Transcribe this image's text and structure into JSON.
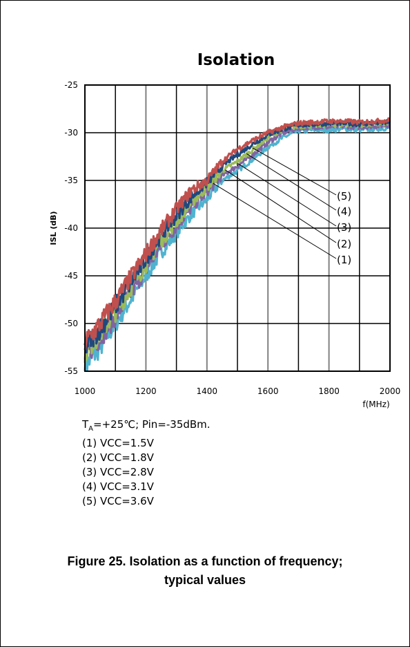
{
  "chart_data": {
    "type": "line",
    "title": "Isolation",
    "ylabel": "ISL (dB)",
    "xlabel": "f(MHz)",
    "xlim": [
      1000,
      2000
    ],
    "ylim": [
      -55,
      -25
    ],
    "xticks": [
      1000,
      1200,
      1400,
      1600,
      1800,
      2000
    ],
    "yticks": [
      -25,
      -30,
      -35,
      -40,
      -45,
      -50,
      -55
    ],
    "grid": true,
    "x": [
      1000,
      1050,
      1100,
      1150,
      1200,
      1250,
      1300,
      1350,
      1400,
      1450,
      1500,
      1550,
      1600,
      1650,
      1700,
      1750,
      1800,
      1850,
      1900,
      1950,
      2000
    ],
    "series": [
      {
        "name": "(1)",
        "color": "#4fb3cf",
        "values": [
          -54.5,
          -52.5,
          -50.0,
          -47.5,
          -45.0,
          -42.5,
          -40.5,
          -38.5,
          -37.0,
          -35.0,
          -34.0,
          -32.8,
          -31.5,
          -30.5,
          -29.8,
          -29.7,
          -29.7,
          -29.6,
          -29.7,
          -29.6,
          -29.5
        ]
      },
      {
        "name": "(2)",
        "color": "#8064a2",
        "values": [
          -53.5,
          -51.5,
          -49.3,
          -46.8,
          -44.3,
          -41.8,
          -39.8,
          -37.8,
          -36.2,
          -34.5,
          -33.5,
          -32.3,
          -31.0,
          -30.0,
          -29.5,
          -29.4,
          -29.4,
          -29.3,
          -29.4,
          -29.3,
          -29.2
        ]
      },
      {
        "name": "(3)",
        "color": "#9bbb59",
        "values": [
          -53.0,
          -51.0,
          -48.8,
          -46.3,
          -43.8,
          -41.3,
          -39.3,
          -37.3,
          -35.7,
          -34.0,
          -33.0,
          -31.8,
          -30.5,
          -29.6,
          -29.3,
          -29.2,
          -29.2,
          -29.1,
          -29.2,
          -29.1,
          -29.0
        ]
      },
      {
        "name": "(4)",
        "color": "#1f497d",
        "values": [
          -52.5,
          -50.5,
          -48.2,
          -45.7,
          -43.2,
          -40.7,
          -38.7,
          -36.7,
          -35.2,
          -33.5,
          -32.3,
          -31.2,
          -30.2,
          -29.6,
          -29.2,
          -29.1,
          -29.0,
          -29.0,
          -29.1,
          -29.0,
          -28.9
        ]
      },
      {
        "name": "(5)",
        "color": "#c0504d",
        "values": [
          -52.0,
          -50.0,
          -47.7,
          -45.2,
          -42.7,
          -40.2,
          -38.0,
          -36.0,
          -35.0,
          -33.0,
          -31.7,
          -30.8,
          -30.0,
          -29.4,
          -29.0,
          -28.9,
          -28.8,
          -28.8,
          -28.9,
          -28.8,
          -28.7
        ]
      }
    ],
    "annotations": [
      "(5)",
      "(4)",
      "(3)",
      "(2)",
      "(1)"
    ]
  },
  "conditions": {
    "line1_t": "T",
    "line1_sub": "A",
    "line1_rest": "=+25℃; Pin=-35dBm.",
    "vcc_lines": [
      "(1) VCC=1.5V",
      "(2) VCC=1.8V",
      "(3) VCC=2.8V",
      "(4) VCC=3.1V",
      "(5) VCC=3.6V"
    ]
  },
  "caption": {
    "line1": "Figure 25. Isolation as a function of frequency;",
    "line2": "typical values"
  }
}
